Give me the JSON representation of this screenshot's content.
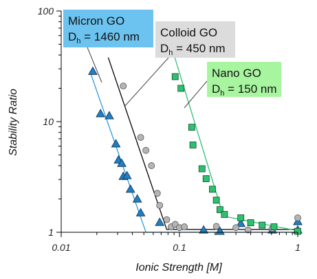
{
  "chart_data": {
    "type": "scatter",
    "xlabel": "Ionic Strength [M]",
    "ylabel": "Stability Ratio",
    "x_scale": "log",
    "y_scale": "log",
    "xlim": [
      0.01,
      1
    ],
    "ylim": [
      1,
      100
    ],
    "x_ticks": [
      {
        "value": 0.01,
        "label": "0.01"
      },
      {
        "value": 0.1,
        "label": "0.1"
      },
      {
        "value": 1,
        "label": "1"
      }
    ],
    "y_ticks": [
      {
        "value": 1,
        "label": "1"
      },
      {
        "value": 10,
        "label": "10"
      },
      {
        "value": 100,
        "label": "100"
      }
    ],
    "grid": false,
    "series": [
      {
        "name": "Micron GO",
        "label_line2": "Dₕ = 1460 nm",
        "color": "#1F7FC4",
        "fit_color": "#2E9BD8",
        "marker": "triangle",
        "label_bg": "#6CC3F0",
        "points": [
          [
            0.0185,
            28.5
          ],
          [
            0.0215,
            11.8
          ],
          [
            0.0255,
            11.3
          ],
          [
            0.029,
            6.3
          ],
          [
            0.0305,
            4.5
          ],
          [
            0.0325,
            4.2
          ],
          [
            0.0335,
            3.2
          ],
          [
            0.036,
            3.25
          ],
          [
            0.0385,
            2.45
          ],
          [
            0.044,
            2.0
          ],
          [
            0.047,
            1.5
          ],
          [
            0.068,
            1.23
          ],
          [
            0.16,
            1.05
          ],
          [
            0.22,
            1.02
          ],
          [
            0.33,
            1.2
          ],
          [
            0.61,
            1.05
          ],
          [
            1.0,
            1.25
          ],
          [
            1.0,
            1.05
          ]
        ],
        "fit": [
          [
            0.0175,
            28.5
          ],
          [
            0.052,
            1.0
          ],
          [
            1.0,
            1.0
          ]
        ]
      },
      {
        "name": "Colloid GO",
        "label_line2": "Dₕ = 450 nm",
        "color": "#B5B5B5",
        "fit_color": "#000000",
        "marker": "circle",
        "label_bg": "#DCDCDC",
        "points": [
          [
            0.0335,
            21.0
          ],
          [
            0.047,
            7.2
          ],
          [
            0.052,
            5.5
          ],
          [
            0.058,
            4.0
          ],
          [
            0.065,
            2.25
          ],
          [
            0.068,
            1.75
          ],
          [
            0.078,
            1.3
          ],
          [
            0.085,
            1.12
          ],
          [
            0.092,
            1.18
          ],
          [
            0.1,
            1.1
          ],
          [
            0.11,
            1.12
          ],
          [
            0.205,
            1.13
          ],
          [
            0.3,
            1.1
          ],
          [
            0.38,
            1.05
          ],
          [
            0.61,
            1.08
          ],
          [
            1.0,
            1.35
          ]
        ],
        "fit": [
          [
            0.025,
            38.0
          ],
          [
            0.078,
            1.06
          ],
          [
            1.0,
            1.06
          ]
        ]
      },
      {
        "name": "Nano GO",
        "label_line2": "Dₕ = 150 nm",
        "color": "#2FBF71",
        "fit_color": "#2FBF71",
        "marker": "square",
        "label_bg": "#A8F5A0",
        "points": [
          [
            0.092,
            25.5
          ],
          [
            0.103,
            20.0
          ],
          [
            0.127,
            8.9
          ],
          [
            0.13,
            6.15
          ],
          [
            0.155,
            3.75
          ],
          [
            0.168,
            3.05
          ],
          [
            0.19,
            2.45
          ],
          [
            0.205,
            1.95
          ],
          [
            0.22,
            1.6
          ],
          [
            0.24,
            1.45
          ],
          [
            0.33,
            1.35
          ],
          [
            0.4,
            1.22
          ],
          [
            0.5,
            1.16
          ],
          [
            0.63,
            1.12
          ],
          [
            1.0,
            1.02
          ]
        ],
        "fit": [
          [
            0.09,
            40.0
          ],
          [
            0.235,
            1.4
          ],
          [
            1.0,
            1.03
          ]
        ]
      }
    ],
    "callouts": [
      {
        "series_index": 0,
        "line1": "Micron GO",
        "line2_main": "D",
        "line2_sub": "h",
        "line2_rest": " = 1460 nm"
      },
      {
        "series_index": 1,
        "line1": "Colloid GO",
        "line2_main": "D",
        "line2_sub": "h",
        "line2_rest": " = 450 nm"
      },
      {
        "series_index": 2,
        "line1": "Nano GO",
        "line2_main": "D",
        "line2_sub": "h",
        "line2_rest": " = 150 nm"
      }
    ]
  }
}
